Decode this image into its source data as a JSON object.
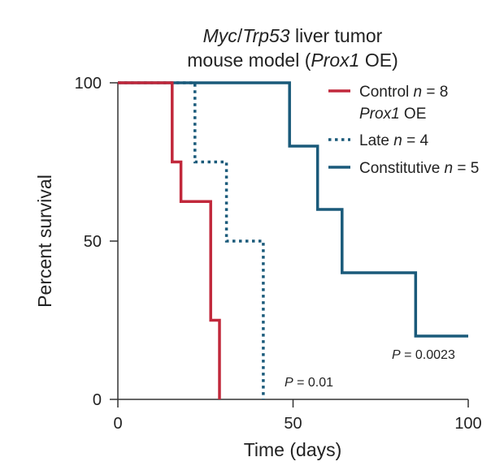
{
  "chart_data": {
    "type": "line",
    "step": true,
    "title_line1": {
      "italic_part1": "Myc",
      "sep": "/",
      "italic_part2": "Trp53",
      "rest": " liver tumor"
    },
    "title_line2": {
      "pre": "mouse model (",
      "italic": "Prox1",
      "post": " OE)"
    },
    "xlabel": "Time (days)",
    "ylabel": "Percent survival",
    "xlim": [
      0,
      100
    ],
    "ylim": [
      0,
      100
    ],
    "xticks": [
      "0",
      "50",
      "100"
    ],
    "yticks": [
      "0",
      "50",
      "100"
    ],
    "grid": false,
    "legend_position": "top-right",
    "legend_group_label": {
      "italic": "Prox1",
      "rest": " OE"
    },
    "series": [
      {
        "key": "control",
        "name_text": "Control ",
        "n_label": "n",
        "n_value": " = 8",
        "color": "#c1283b",
        "style": "solid",
        "points": [
          [
            0,
            100
          ],
          [
            15.5,
            100
          ],
          [
            15.5,
            75
          ],
          [
            18,
            75
          ],
          [
            18,
            62.5
          ],
          [
            26.5,
            62.5
          ],
          [
            26.5,
            25
          ],
          [
            29,
            25
          ],
          [
            29,
            0
          ]
        ]
      },
      {
        "key": "late",
        "name_text": "Late ",
        "n_label": "n",
        "n_value": " = 4",
        "color": "#1a5a7a",
        "style": "dotted",
        "points": [
          [
            0,
            100
          ],
          [
            22,
            100
          ],
          [
            22,
            75
          ],
          [
            31,
            75
          ],
          [
            31,
            50
          ],
          [
            41.5,
            50
          ],
          [
            41.5,
            0
          ]
        ]
      },
      {
        "key": "constitutive",
        "name_text": "Constitutive ",
        "n_label": "n",
        "n_value": " = 5",
        "color": "#1a5a7a",
        "style": "solid",
        "points": [
          [
            0,
            100
          ],
          [
            49,
            100
          ],
          [
            49,
            80
          ],
          [
            57,
            80
          ],
          [
            57,
            60
          ],
          [
            64,
            60
          ],
          [
            64,
            40
          ],
          [
            85,
            40
          ],
          [
            85,
            20
          ],
          [
            100,
            20
          ]
        ]
      }
    ],
    "annotations": {
      "p_late": {
        "label": "P",
        "value": " = 0.01"
      },
      "p_constitutive": {
        "label": "P",
        "value": " = 0.0023"
      }
    }
  }
}
